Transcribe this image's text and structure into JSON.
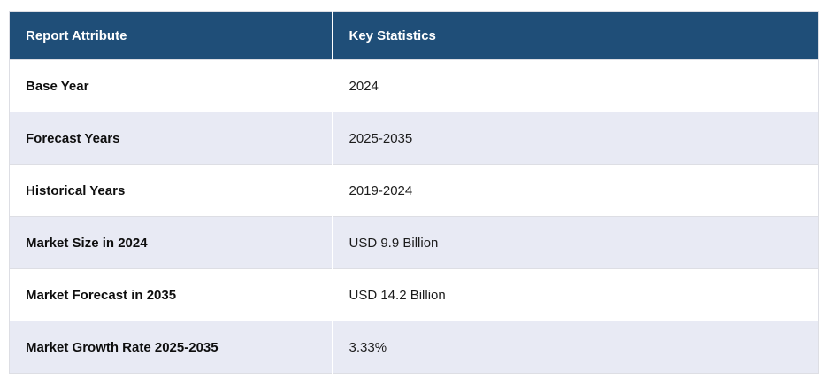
{
  "colors": {
    "header_bg": "#1F4E78",
    "header_text": "#FFFFFF",
    "row_bg": "#FFFFFF",
    "row_alt_bg": "#E8EAF4",
    "border": "#DDDEE4",
    "attr_text": "#0E0E0E",
    "value_text": "#1C1C1C"
  },
  "table": {
    "columns": [
      "Report Attribute",
      "Key Statistics"
    ],
    "rows": [
      {
        "attribute": "Base Year",
        "value": "2024"
      },
      {
        "attribute": "Forecast Years",
        "value": "2025-2035"
      },
      {
        "attribute": "Historical Years",
        "value": "2019-2024"
      },
      {
        "attribute": "Market Size in 2024",
        "value": "USD 9.9 Billion"
      },
      {
        "attribute": "Market Forecast in 2035",
        "value": "USD 14.2 Billion"
      },
      {
        "attribute": "Market Growth Rate 2025-2035",
        "value": "3.33%"
      }
    ]
  },
  "chart_data": {
    "type": "table",
    "columns": [
      "Report Attribute",
      "Key Statistics"
    ],
    "rows": [
      [
        "Base Year",
        "2024"
      ],
      [
        "Forecast Years",
        "2025-2035"
      ],
      [
        "Historical Years",
        "2019-2024"
      ],
      [
        "Market Size in 2024",
        "USD 9.9 Billion"
      ],
      [
        "Market Forecast in 2035",
        "USD 14.2 Billion"
      ],
      [
        "Market Growth Rate 2025-2035",
        "3.33%"
      ]
    ],
    "title": "",
    "layout_hints": {
      "header_style": "dark-navy, white bold text",
      "row_striping": "white / light-lavender alternating starting with white",
      "first_column_bold": true
    }
  }
}
